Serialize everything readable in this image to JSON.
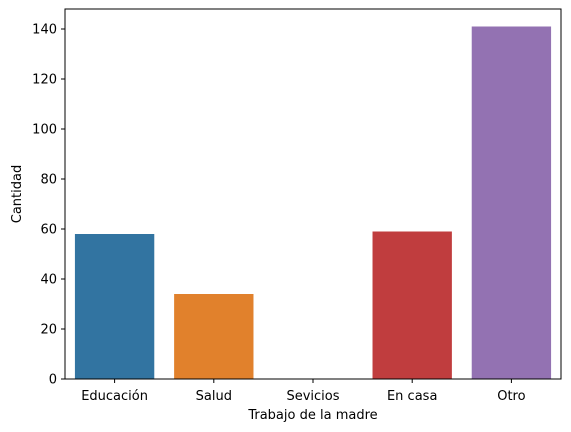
{
  "chart_data": {
    "type": "bar",
    "title": "",
    "xlabel": "Trabajo de la madre",
    "ylabel": "Cantidad",
    "categories": [
      "Educación",
      "Salud",
      "Sevicios",
      "En casa",
      "Otro"
    ],
    "values": [
      58,
      34,
      0,
      59,
      141
    ],
    "colors": [
      "#3274a1",
      "#e1812c",
      "#3a923a",
      "#c03d3e",
      "#9372b2"
    ],
    "ylim": [
      0,
      148
    ],
    "yticks": [
      0,
      20,
      40,
      60,
      80,
      100,
      120,
      140
    ],
    "grid": false,
    "legend": "none"
  }
}
